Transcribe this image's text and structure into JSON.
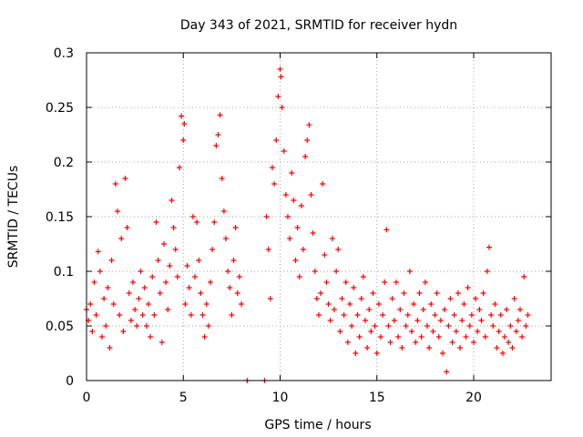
{
  "chart_data": {
    "type": "scatter",
    "title": "Day 343 of 2021, SRMTID for receiver hydn",
    "xlabel": "GPS time / hours",
    "ylabel": "SRMTID / TECUs",
    "xlim": [
      0,
      24
    ],
    "ylim": [
      0,
      0.3
    ],
    "x_ticks": [
      0,
      5,
      10,
      15,
      20
    ],
    "x_tick_labels": [
      "0",
      "5",
      "10",
      "15",
      "20"
    ],
    "y_ticks": [
      0,
      0.05,
      0.1,
      0.15,
      0.2,
      0.25,
      0.3
    ],
    "y_tick_labels": [
      "0",
      "0.05",
      "0.1",
      "0.15",
      "0.2",
      "0.25",
      "0.3"
    ],
    "grid": true,
    "marker": "plus",
    "color": "#ff0000",
    "series": [
      {
        "name": "SRMTID",
        "points": [
          [
            0.0,
            0.065
          ],
          [
            0.1,
            0.055
          ],
          [
            0.2,
            0.07
          ],
          [
            0.3,
            0.045
          ],
          [
            0.4,
            0.09
          ],
          [
            0.5,
            0.06
          ],
          [
            0.6,
            0.118
          ],
          [
            0.7,
            0.1
          ],
          [
            0.8,
            0.04
          ],
          [
            0.9,
            0.075
          ],
          [
            1.0,
            0.05
          ],
          [
            1.1,
            0.085
          ],
          [
            1.2,
            0.03
          ],
          [
            1.3,
            0.11
          ],
          [
            1.4,
            0.07
          ],
          [
            1.5,
            0.18
          ],
          [
            1.6,
            0.155
          ],
          [
            1.7,
            0.06
          ],
          [
            1.8,
            0.13
          ],
          [
            1.9,
            0.045
          ],
          [
            2.0,
            0.185
          ],
          [
            2.1,
            0.14
          ],
          [
            2.2,
            0.08
          ],
          [
            2.3,
            0.055
          ],
          [
            2.4,
            0.09
          ],
          [
            2.5,
            0.065
          ],
          [
            2.6,
            0.05
          ],
          [
            2.7,
            0.075
          ],
          [
            2.8,
            0.1
          ],
          [
            2.9,
            0.06
          ],
          [
            3.0,
            0.085
          ],
          [
            3.1,
            0.05
          ],
          [
            3.2,
            0.07
          ],
          [
            3.3,
            0.04
          ],
          [
            3.4,
            0.095
          ],
          [
            3.5,
            0.06
          ],
          [
            3.6,
            0.145
          ],
          [
            3.7,
            0.11
          ],
          [
            3.8,
            0.08
          ],
          [
            3.9,
            0.035
          ],
          [
            4.0,
            0.125
          ],
          [
            4.1,
            0.09
          ],
          [
            4.2,
            0.065
          ],
          [
            4.3,
            0.105
          ],
          [
            4.4,
            0.165
          ],
          [
            4.5,
            0.14
          ],
          [
            4.6,
            0.12
          ],
          [
            4.7,
            0.095
          ],
          [
            4.8,
            0.195
          ],
          [
            4.9,
            0.242
          ],
          [
            5.0,
            0.22
          ],
          [
            5.05,
            0.235
          ],
          [
            5.1,
            0.07
          ],
          [
            5.2,
            0.105
          ],
          [
            5.3,
            0.085
          ],
          [
            5.4,
            0.06
          ],
          [
            5.5,
            0.15
          ],
          [
            5.6,
            0.095
          ],
          [
            5.7,
            0.145
          ],
          [
            5.8,
            0.11
          ],
          [
            5.9,
            0.08
          ],
          [
            6.0,
            0.06
          ],
          [
            6.1,
            0.04
          ],
          [
            6.2,
            0.07
          ],
          [
            6.3,
            0.05
          ],
          [
            6.4,
            0.09
          ],
          [
            6.5,
            0.12
          ],
          [
            6.6,
            0.145
          ],
          [
            6.7,
            0.215
          ],
          [
            6.8,
            0.225
          ],
          [
            6.9,
            0.243
          ],
          [
            7.0,
            0.185
          ],
          [
            7.1,
            0.155
          ],
          [
            7.2,
            0.13
          ],
          [
            7.3,
            0.1
          ],
          [
            7.4,
            0.085
          ],
          [
            7.5,
            0.06
          ],
          [
            7.6,
            0.11
          ],
          [
            7.7,
            0.14
          ],
          [
            7.8,
            0.08
          ],
          [
            7.9,
            0.095
          ],
          [
            8.0,
            0.07
          ],
          [
            8.3,
            0.0
          ],
          [
            9.2,
            0.0
          ],
          [
            9.3,
            0.15
          ],
          [
            9.4,
            0.12
          ],
          [
            9.5,
            0.075
          ],
          [
            9.6,
            0.195
          ],
          [
            9.7,
            0.18
          ],
          [
            9.8,
            0.22
          ],
          [
            9.9,
            0.26
          ],
          [
            10.0,
            0.285
          ],
          [
            10.05,
            0.278
          ],
          [
            10.1,
            0.25
          ],
          [
            10.2,
            0.21
          ],
          [
            10.3,
            0.17
          ],
          [
            10.4,
            0.15
          ],
          [
            10.5,
            0.13
          ],
          [
            10.6,
            0.19
          ],
          [
            10.7,
            0.165
          ],
          [
            10.8,
            0.11
          ],
          [
            10.9,
            0.14
          ],
          [
            11.0,
            0.095
          ],
          [
            11.1,
            0.16
          ],
          [
            11.2,
            0.12
          ],
          [
            11.3,
            0.205
          ],
          [
            11.4,
            0.22
          ],
          [
            11.5,
            0.234
          ],
          [
            11.6,
            0.17
          ],
          [
            11.7,
            0.135
          ],
          [
            11.8,
            0.1
          ],
          [
            11.9,
            0.075
          ],
          [
            12.0,
            0.06
          ],
          [
            12.1,
            0.08
          ],
          [
            12.2,
            0.18
          ],
          [
            12.3,
            0.115
          ],
          [
            12.4,
            0.09
          ],
          [
            12.5,
            0.07
          ],
          [
            12.6,
            0.055
          ],
          [
            12.7,
            0.13
          ],
          [
            12.8,
            0.065
          ],
          [
            12.9,
            0.1
          ],
          [
            13.0,
            0.12
          ],
          [
            13.1,
            0.045
          ],
          [
            13.2,
            0.075
          ],
          [
            13.3,
            0.06
          ],
          [
            13.4,
            0.09
          ],
          [
            13.5,
            0.035
          ],
          [
            13.6,
            0.07
          ],
          [
            13.7,
            0.05
          ],
          [
            13.8,
            0.085
          ],
          [
            13.9,
            0.025
          ],
          [
            14.0,
            0.06
          ],
          [
            14.1,
            0.04
          ],
          [
            14.2,
            0.075
          ],
          [
            14.3,
            0.095
          ],
          [
            14.4,
            0.055
          ],
          [
            14.5,
            0.03
          ],
          [
            14.6,
            0.065
          ],
          [
            14.7,
            0.045
          ],
          [
            14.8,
            0.08
          ],
          [
            14.9,
            0.05
          ],
          [
            15.0,
            0.025
          ],
          [
            15.1,
            0.07
          ],
          [
            15.2,
            0.04
          ],
          [
            15.3,
            0.06
          ],
          [
            15.4,
            0.09
          ],
          [
            15.5,
            0.138
          ],
          [
            15.6,
            0.05
          ],
          [
            15.7,
            0.035
          ],
          [
            15.8,
            0.075
          ],
          [
            15.9,
            0.055
          ],
          [
            16.0,
            0.09
          ],
          [
            16.1,
            0.04
          ],
          [
            16.2,
            0.065
          ],
          [
            16.3,
            0.03
          ],
          [
            16.4,
            0.08
          ],
          [
            16.5,
            0.05
          ],
          [
            16.6,
            0.06
          ],
          [
            16.7,
            0.1
          ],
          [
            16.8,
            0.045
          ],
          [
            16.9,
            0.07
          ],
          [
            17.0,
            0.035
          ],
          [
            17.1,
            0.055
          ],
          [
            17.2,
            0.08
          ],
          [
            17.3,
            0.04
          ],
          [
            17.4,
            0.065
          ],
          [
            17.5,
            0.09
          ],
          [
            17.6,
            0.05
          ],
          [
            17.7,
            0.03
          ],
          [
            17.8,
            0.07
          ],
          [
            17.9,
            0.045
          ],
          [
            18.0,
            0.06
          ],
          [
            18.1,
            0.08
          ],
          [
            18.2,
            0.04
          ],
          [
            18.3,
            0.055
          ],
          [
            18.4,
            0.025
          ],
          [
            18.5,
            0.065
          ],
          [
            18.6,
            0.008
          ],
          [
            18.7,
            0.05
          ],
          [
            18.8,
            0.075
          ],
          [
            18.9,
            0.035
          ],
          [
            19.0,
            0.06
          ],
          [
            19.1,
            0.045
          ],
          [
            19.2,
            0.08
          ],
          [
            19.3,
            0.03
          ],
          [
            19.4,
            0.055
          ],
          [
            19.5,
            0.07
          ],
          [
            19.6,
            0.04
          ],
          [
            19.7,
            0.085
          ],
          [
            19.8,
            0.05
          ],
          [
            19.9,
            0.06
          ],
          [
            20.0,
            0.035
          ],
          [
            20.1,
            0.075
          ],
          [
            20.2,
            0.045
          ],
          [
            20.3,
            0.065
          ],
          [
            20.4,
            0.055
          ],
          [
            20.5,
            0.08
          ],
          [
            20.6,
            0.04
          ],
          [
            20.7,
            0.1
          ],
          [
            20.8,
            0.122
          ],
          [
            20.9,
            0.06
          ],
          [
            21.0,
            0.05
          ],
          [
            21.1,
            0.07
          ],
          [
            21.2,
            0.03
          ],
          [
            21.3,
            0.045
          ],
          [
            21.4,
            0.06
          ],
          [
            21.5,
            0.025
          ],
          [
            21.6,
            0.04
          ],
          [
            21.7,
            0.065
          ],
          [
            21.8,
            0.035
          ],
          [
            21.9,
            0.05
          ],
          [
            22.0,
            0.03
          ],
          [
            22.1,
            0.075
          ],
          [
            22.2,
            0.045
          ],
          [
            22.3,
            0.055
          ],
          [
            22.4,
            0.065
          ],
          [
            22.5,
            0.04
          ],
          [
            22.6,
            0.095
          ],
          [
            22.7,
            0.05
          ],
          [
            22.8,
            0.06
          ]
        ]
      }
    ]
  }
}
